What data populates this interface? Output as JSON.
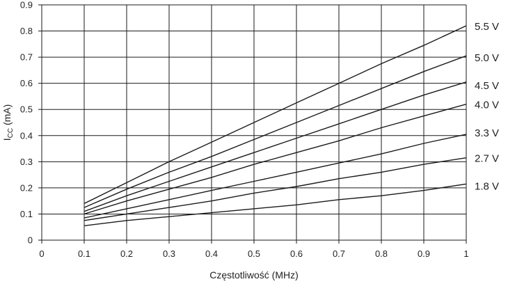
{
  "chart_data": {
    "type": "line",
    "title": "",
    "xlabel": "Częstotliwość (MHz)",
    "ylabel": {
      "main": "I",
      "sub": "CC",
      "unit": " (mA)"
    },
    "xlim": [
      0,
      1
    ],
    "ylim": [
      0,
      0.9
    ],
    "xticks": [
      0,
      0.1,
      0.2,
      0.3,
      0.4,
      0.5,
      0.6,
      0.7,
      0.8,
      0.9,
      1
    ],
    "xtick_labels": [
      "0",
      "0.1",
      "0.2",
      "0.3",
      "0.4",
      "0.5",
      "0.6",
      "0.7",
      "0.8",
      "0.9",
      "1"
    ],
    "yticks": [
      0,
      0.1,
      0.2,
      0.3,
      0.4,
      0.5,
      0.6,
      0.7,
      0.8,
      0.9
    ],
    "ytick_labels": [
      "0",
      "0.1",
      "0.2",
      "0.3",
      "0.4",
      "0.5",
      "0.6",
      "0.7",
      "0.8",
      "0.9"
    ],
    "grid": true,
    "legend": "labels at right end of lines",
    "x": [
      0.1,
      0.2,
      0.3,
      0.4,
      0.5,
      0.6,
      0.7,
      0.8,
      0.9,
      1.0
    ],
    "series": [
      {
        "name": "5.5 V",
        "values": [
          0.14,
          0.22,
          0.3,
          0.375,
          0.45,
          0.525,
          0.6,
          0.675,
          0.745,
          0.82
        ]
      },
      {
        "name": "5.0 V",
        "values": [
          0.125,
          0.195,
          0.26,
          0.32,
          0.385,
          0.45,
          0.515,
          0.58,
          0.645,
          0.705
        ]
      },
      {
        "name": "4.5 V",
        "values": [
          0.11,
          0.17,
          0.225,
          0.28,
          0.335,
          0.39,
          0.445,
          0.5,
          0.555,
          0.605
        ]
      },
      {
        "name": "4.0 V",
        "values": [
          0.1,
          0.15,
          0.195,
          0.24,
          0.29,
          0.335,
          0.38,
          0.43,
          0.475,
          0.52
        ]
      },
      {
        "name": "3.3 V",
        "values": [
          0.085,
          0.12,
          0.155,
          0.19,
          0.225,
          0.26,
          0.295,
          0.33,
          0.37,
          0.405
        ]
      },
      {
        "name": "2.7 V",
        "values": [
          0.075,
          0.1,
          0.125,
          0.15,
          0.18,
          0.205,
          0.235,
          0.26,
          0.29,
          0.315
        ]
      },
      {
        "name": "1.8 V",
        "values": [
          0.055,
          0.075,
          0.09,
          0.105,
          0.12,
          0.135,
          0.155,
          0.17,
          0.19,
          0.215
        ]
      }
    ],
    "line_color": "#1a1a1a",
    "grid_color": "#1a1a1a"
  }
}
